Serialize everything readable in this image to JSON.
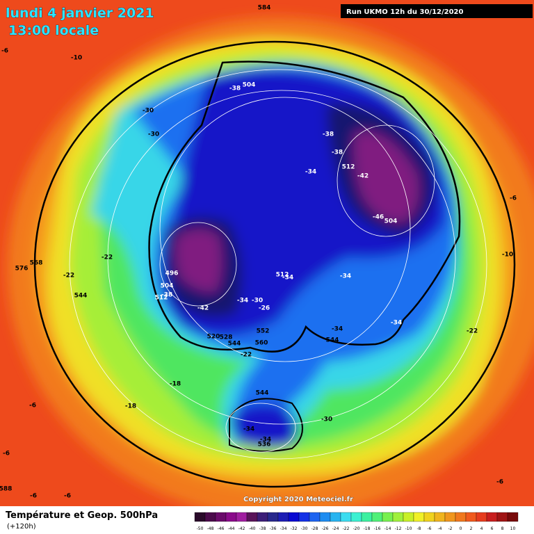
{
  "header": {
    "date": "lundi 4 janvier 2021",
    "time": "13:00 locale",
    "run": "Run UKMO 12h du 30/12/2020"
  },
  "footer": {
    "title": "Température et Geop. 500hPa",
    "lead": "(+120h)",
    "copyright": "Copyright 2020 Meteociel.fr"
  },
  "scale": {
    "ticks": [
      -50,
      -48,
      -46,
      -44,
      -42,
      -40,
      -38,
      -36,
      -34,
      -32,
      -30,
      -28,
      -26,
      -24,
      -22,
      -20,
      -18,
      -16,
      -14,
      -12,
      -10,
      -8,
      -6,
      -4,
      -2,
      0,
      2,
      4,
      6,
      8,
      10
    ],
    "colors": [
      "#2a0a2a",
      "#4b0a4b",
      "#6a0a6a",
      "#8a0a8a",
      "#a01ea0",
      "#5a145a",
      "#3c1e78",
      "#28288c",
      "#1e1eb4",
      "#0a0ad2",
      "#1432e6",
      "#1e64f0",
      "#1e8cf0",
      "#28b4f0",
      "#3cdcf0",
      "#3cf0d2",
      "#3cf0a0",
      "#50f078",
      "#78f050",
      "#a0f03c",
      "#c8f028",
      "#f0f028",
      "#f0d21e",
      "#f0b41e",
      "#f0961e",
      "#f0781e",
      "#f05a1e",
      "#e63c1e",
      "#c81e1e",
      "#a01414",
      "#780a0a"
    ]
  },
  "map_labels": [
    -38,
    504,
    -30,
    -30,
    -38,
    -38,
    512,
    -42,
    -34,
    -46,
    504,
    -22,
    -22,
    544,
    576,
    568,
    496,
    504,
    512,
    -38,
    -42,
    -34,
    -30,
    -26,
    512,
    -34,
    -34,
    552,
    560,
    520,
    528,
    544,
    -22,
    -34,
    544,
    -34,
    544,
    -34,
    -34,
    536,
    -30,
    -18,
    -18,
    -22,
    -6,
    -10,
    584,
    -6,
    -10,
    -6,
    -6,
    -6,
    -6,
    -6,
    588
  ]
}
